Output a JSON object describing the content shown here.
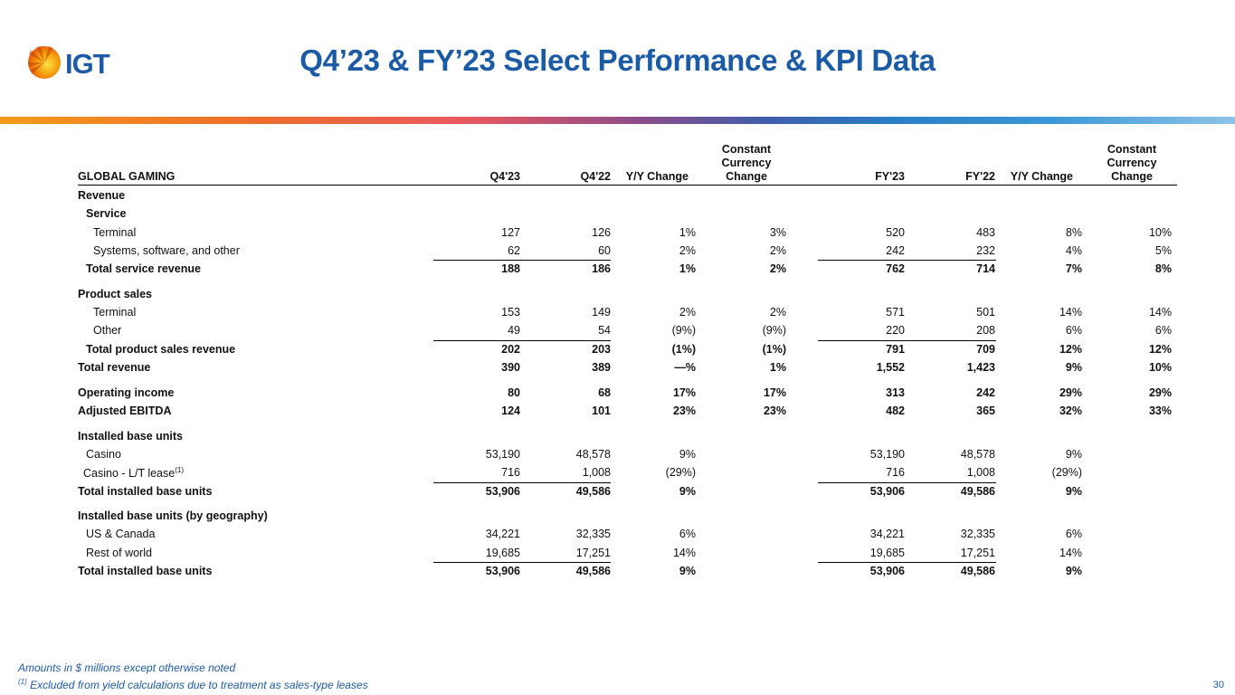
{
  "brand": {
    "logo_text": "IGT"
  },
  "title": "Q4’23 & FY’23 Select Performance & KPI Data",
  "table": {
    "section_label": "GLOBAL GAMING",
    "headers": {
      "q423": "Q4'23",
      "q422": "Q4'22",
      "yy_q": "Y/Y Change",
      "cc_q_line1": "Constant",
      "cc_q_line2": "Currency",
      "cc_q_line3": "Change",
      "fy23": "FY'23",
      "fy22": "FY'22",
      "yy_fy": "Y/Y Change",
      "cc_fy_line1": "Constant",
      "cc_fy_line2": "Currency",
      "cc_fy_line3": "Change"
    },
    "rows": [
      {
        "label": "Revenue",
        "bold": true,
        "vals": [
          "",
          "",
          "",
          "",
          "",
          "",
          "",
          ""
        ]
      },
      {
        "label": "Service",
        "bold": true,
        "vals": [
          "",
          "",
          "",
          "",
          "",
          "",
          "",
          ""
        ]
      },
      {
        "label": "Terminal",
        "vals": [
          "127",
          "126",
          "1%",
          "3%",
          "520",
          "483",
          "8%",
          "10%"
        ]
      },
      {
        "label": "Systems, software, and other",
        "vals": [
          "62",
          "60",
          "2%",
          "2%",
          "242",
          "232",
          "4%",
          "5%"
        ]
      },
      {
        "label": "Total service revenue",
        "bold": true,
        "vals": [
          "188",
          "186",
          "1%",
          "2%",
          "762",
          "714",
          "7%",
          "8%"
        ]
      },
      {
        "label": "Product sales",
        "bold": true,
        "vals": [
          "",
          "",
          "",
          "",
          "",
          "",
          "",
          ""
        ]
      },
      {
        "label": "Terminal",
        "vals": [
          "153",
          "149",
          "2%",
          "2%",
          "571",
          "501",
          "14%",
          "14%"
        ]
      },
      {
        "label": "Other",
        "vals": [
          "49",
          "54",
          "(9%)",
          "(9%)",
          "220",
          "208",
          "6%",
          "6%"
        ]
      },
      {
        "label": "Total product sales revenue",
        "bold": true,
        "vals": [
          "202",
          "203",
          "(1%)",
          "(1%)",
          "791",
          "709",
          "12%",
          "12%"
        ]
      },
      {
        "label": "Total revenue",
        "bold": true,
        "vals": [
          "390",
          "389",
          "—%",
          "1%",
          "1,552",
          "1,423",
          "9%",
          "10%"
        ]
      },
      {
        "label": "Operating income",
        "bold": true,
        "vals": [
          "80",
          "68",
          "17%",
          "17%",
          "313",
          "242",
          "29%",
          "29%"
        ]
      },
      {
        "label": "Adjusted EBITDA",
        "bold": true,
        "vals": [
          "124",
          "101",
          "23%",
          "23%",
          "482",
          "365",
          "32%",
          "33%"
        ]
      },
      {
        "label": "Installed base units",
        "bold": true,
        "vals": [
          "",
          "",
          "",
          "",
          "",
          "",
          "",
          ""
        ]
      },
      {
        "label": "Casino",
        "vals": [
          "53,190",
          "48,578",
          "9%",
          "",
          "53,190",
          "48,578",
          "9%",
          ""
        ]
      },
      {
        "label": "Casino - L/T lease",
        "sup": "(1)",
        "vals": [
          "716",
          "1,008",
          "(29%)",
          "",
          "716",
          "1,008",
          "(29%)",
          ""
        ]
      },
      {
        "label": "Total installed base units",
        "bold": true,
        "vals": [
          "53,906",
          "49,586",
          "9%",
          "",
          "53,906",
          "49,586",
          "9%",
          ""
        ]
      },
      {
        "label": "Installed base units (by geography)",
        "bold": true,
        "vals": [
          "",
          "",
          "",
          "",
          "",
          "",
          "",
          ""
        ]
      },
      {
        "label": "US & Canada",
        "vals": [
          "34,221",
          "32,335",
          "6%",
          "",
          "34,221",
          "32,335",
          "6%",
          ""
        ]
      },
      {
        "label": "Rest of world",
        "vals": [
          "19,685",
          "17,251",
          "14%",
          "",
          "19,685",
          "17,251",
          "14%",
          ""
        ]
      },
      {
        "label": "Total installed base units",
        "bold": true,
        "vals": [
          "53,906",
          "49,586",
          "9%",
          "",
          "53,906",
          "49,586",
          "9%",
          ""
        ]
      }
    ]
  },
  "footnotes": {
    "line1": "Amounts in $ millions except otherwise noted",
    "line2_sup": "(1)",
    "line2": " Excluded from yield calculations due to treatment as sales-type leases"
  },
  "page_number": "30"
}
